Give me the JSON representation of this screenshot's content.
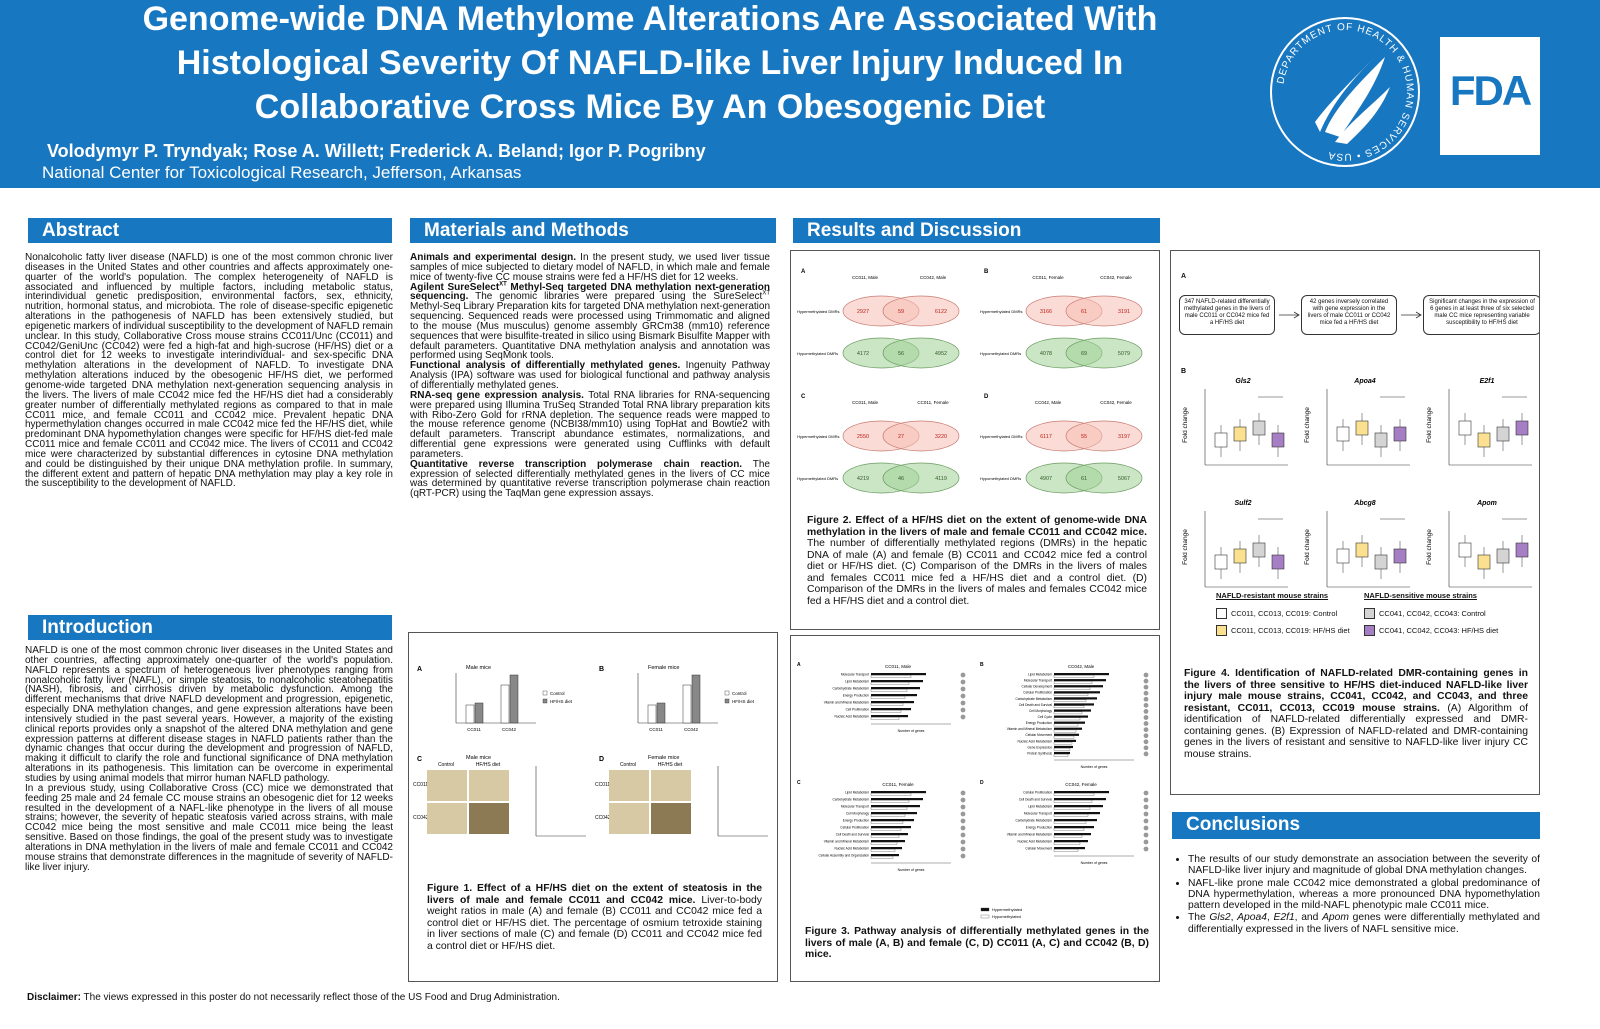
{
  "header": {
    "title_lines": [
      "Genome-wide DNA Methylome Alterations Are Associated With",
      "Histological Severity Of NAFLD-like Liver Injury Induced In",
      "Collaborative Cross Mice By An Obesogenic Diet"
    ],
    "authors": "Volodymyr P. Tryndyak; Rose A. Willett; Frederick A. Beland; Igor P. Pogribny",
    "affiliation": "National Center for Toxicological Research, Jefferson, Arkansas",
    "seal_text": "DEPARTMENT OF HEALTH & HUMAN SERVICES • USA",
    "logo": "FDA"
  },
  "abstract": {
    "heading": "Abstract",
    "text": "Nonalcoholic fatty liver disease (NAFLD) is one of the most common chronic liver diseases in the United States and other countries and affects approximately one-quarter of the world's population. The complex heterogeneity of NAFLD is associated and influenced by multiple factors, including metabolic status, interindividual genetic predisposition, environmental factors, sex, ethnicity, nutrition, hormonal status, and microbiota. The role of disease-specific epigenetic alterations in the pathogenesis of NAFLD has been extensively studied, but epigenetic markers of individual susceptibility to the development of NAFLD remain unclear. In this study, Collaborative Cross mouse strains CC011/Unc (CC011) and CC042/GeniUnc (CC042) were fed a high-fat and high-sucrose (HF/HS) diet or a control diet for 12 weeks to investigate interindividual- and sex-specific DNA methylation alterations in the development of NAFLD. To investigate DNA methylation alterations induced by the obesogenic HF/HS diet, we performed genome-wide targeted DNA methylation next-generation sequencing analysis in the livers. The livers of male CC042 mice fed the HF/HS diet had a considerably greater number of differentially methylated regions as compared to that in male CC011 mice, and female CC011 and CC042 mice. Prevalent hepatic DNA hypermethylation changes occurred in male CC042 mice fed the HF/HS diet, while predominant DNA hypomethylation changes were specific for HF/HS diet-fed male CC011 mice and female CC011 and CC042 mice. The livers of CC011 and CC042 mice were characterized by substantial differences in cytosine DNA methylation and could be distinguished by their unique DNA methylation profile. In summary, the different extent and pattern of hepatic DNA methylation may play a key role in the susceptibility to the development of NAFLD."
  },
  "introduction": {
    "heading": "Introduction",
    "paragraphs": [
      "NAFLD is one of the most common chronic liver diseases in the United States and other countries, affecting approximately one-quarter of the world's population. NAFLD represents a spectrum of heterogeneous liver phenotypes ranging from nonalcoholic fatty liver (NAFL), or simple steatosis, to nonalcoholic steatohepatitis (NASH), fibrosis, and cirrhosis driven by metabolic dysfunction. Among the different mechanisms that drive NAFLD development and progression, epigenetic, especially DNA methylation changes, and gene expression alterations have been intensively studied in the past several years. However, a majority of the existing clinical reports provides only a snapshot of the altered DNA methylation and gene expression patterns at different disease stages in NAFLD patients rather than the dynamic changes that occur during the development and progression of NAFLD, making it difficult to clarify the role and functional significance of DNA methylation alterations in its pathogenesis. This limitation can be overcome in experimental studies by using animal models that mirror human NAFLD pathology.",
      "In a previous study, using Collaborative Cross (CC) mice we demonstrated that feeding 25 male and 24 female CC mouse strains an obesogenic diet for 12 weeks resulted in the development of a NAFL-like phenotype in the livers of all mouse strains; however, the severity of hepatic steatosis varied across strains, with male CC042 mice being the most sensitive and male CC011 mice being the least sensitive. Based on those findings, the goal of the present study was to investigate alterations in DNA methylation in the livers of male and female CC011 and CC042 mouse strains that demonstrate differences in the magnitude of severity of NAFLD-like liver injury."
    ]
  },
  "methods": {
    "heading": "Materials and Methods",
    "paragraphs": [
      [
        {
          "text": "Animals and experimental design.",
          "style": "b"
        },
        " In the present study, we used liver tissue samples of mice subjected to dietary model of NAFLD, in which male and female mice of twenty-five CC mouse strains were fed a HF/HS diet for 12 weeks."
      ],
      [
        {
          "text": "Agilent SureSelect",
          "style": "b"
        },
        {
          "text": "XT",
          "style": "bsup"
        },
        {
          "text": " Methyl-Seq targeted DNA methylation next-generation sequencing.",
          "style": "b"
        },
        " The genomic libraries were prepared using the SureSelect",
        {
          "text": "XT",
          "style": "sup"
        },
        " Methyl-Seq Library Preparation kits for targeted DNA methylation next-generation sequencing. Sequenced reads were processed using Trimmomatic and aligned to the mouse (Mus musculus) genome assembly GRCm38 (mm10) reference sequences that were bisulfite-treated in silico using Bismark Bisulfite Mapper with default parameters. Quantitative DNA methylation analysis and annotation was performed using SeqMonk tools."
      ],
      [
        {
          "text": "Functional analysis of differentially methylated genes.",
          "style": "b"
        },
        " Ingenuity Pathway Analysis (IPA) software was used for biological functional and pathway analysis of differentially methylated genes."
      ],
      [
        {
          "text": "RNA-seq gene expression analysis.",
          "style": "b"
        },
        " Total RNA libraries for RNA-sequencing were prepared using Illumina TruSeq Stranded Total RNA library preparation kits with Ribo-Zero Gold for rRNA depletion. The sequence reads were mapped to the mouse reference genome (NCBI38/mm10) using TopHat and Bowtie2 with default parameters. Transcript abundance estimates, normalizations, and differential gene expressions were generated using Cufflinks with default parameters."
      ],
      [
        {
          "text": "Quantitative reverse transcription polymerase chain reaction.",
          "style": "b"
        },
        " The expression of selected differentially methylated genes in the livers of CC mice was determined by quantitative reverse transcription polymerase chain reaction (qRT-PCR) using the TaqMan gene expression assays."
      ]
    ]
  },
  "results": {
    "heading": "Results and Discussion"
  },
  "figure1": {
    "panels": [
      {
        "label": "A",
        "title": "Male mice"
      },
      {
        "label": "B",
        "title": "Female mice"
      },
      {
        "label": "C",
        "title": "Male mice"
      },
      {
        "label": "D",
        "title": "Female mice"
      }
    ],
    "groups": [
      "Control",
      "HF/HS diet"
    ],
    "strains": [
      "CC011",
      "CC042"
    ],
    "caption": [
      {
        "text": "Figure 1. Effect of a HF/HS diet on the extent of steatosis in the livers of male and female CC011 and CC042 mice.",
        "style": "b"
      },
      " Liver-to-body weight ratios in male (A) and female (B) CC011 and CC042 mice fed a control diet or HF/HS diet. The percentage of osmium tetroxide staining in liver sections of male (C) and female (D) CC011 and CC042 mice fed a control diet or HF/HS diet."
    ]
  },
  "figure2": {
    "row_labels": [
      "Hypermethylated DMRs",
      "Hypomethylated DMRs"
    ],
    "panels": [
      {
        "label": "A",
        "left": "CC011, Male",
        "right": "CC042, Male",
        "rows": [
          [
            2927,
            59,
            6122
          ],
          [
            4172,
            56,
            4952
          ]
        ]
      },
      {
        "label": "B",
        "left": "CC011, Female",
        "right": "CC042, Female",
        "rows": [
          [
            3166,
            61,
            3191
          ],
          [
            4078,
            69,
            5079
          ]
        ]
      },
      {
        "label": "C",
        "left": "CC011, Male",
        "right": "CC011, Female",
        "rows": [
          [
            2550,
            27,
            3220
          ],
          [
            4219,
            46,
            4119
          ]
        ]
      },
      {
        "label": "D",
        "left": "CC042, Male",
        "right": "CC042, Female",
        "rows": [
          [
            6117,
            55,
            3197
          ],
          [
            4907,
            61,
            5067
          ]
        ]
      }
    ],
    "caption": [
      {
        "text": "Figure 2. Effect of a HF/HS diet on the extent of genome-wide DNA methylation in the livers of male and female CC011 and CC042 mice.",
        "style": "b"
      },
      " The number of differentially methylated regions (DMRs) in the hepatic DNA of male (A) and female (B) CC011 and CC042 mice fed a control diet or HF/HS diet. (C) Comparison of the DMRs in the livers of males and females CC011 mice fed a HF/HS diet and a control diet. (D) Comparison of the DMRs in the livers of males and females CC042 mice fed a HF/HS diet and a control diet."
    ]
  },
  "figure3": {
    "axis_label": "Number of genes",
    "legend": [
      "Hypermethylated",
      "Hypomethylated"
    ],
    "panels": [
      {
        "label": "A",
        "title": "CC011, Male",
        "categories": [
          "Molecular Transport",
          "Lipid Metabolism",
          "Carbohydrate Metabolism",
          "Energy Production",
          "Vitamin and Mineral Metabolism",
          "Cell Proliferation",
          "Nucleic Acid Metabolism"
        ]
      },
      {
        "label": "B",
        "title": "CC042, Male",
        "categories": [
          "Lipid Metabolism",
          "Molecular Transport",
          "Cellular Development",
          "Cellular Proliferation",
          "Carbohydrate Metabolism",
          "Cell Death and Survival",
          "Cell Morphology",
          "Cell Cycle",
          "Energy Production",
          "Vitamin and Mineral Metabolism",
          "Cellular Movement",
          "Nucleic Acid Metabolism",
          "Gene Expression",
          "Protein Synthesis"
        ]
      },
      {
        "label": "C",
        "title": "CC011, Female",
        "categories": [
          "Lipid Metabolism",
          "Carbohydrate Metabolism",
          "Molecular Transport",
          "Cell Morphology",
          "Energy Production",
          "Cellular Proliferation",
          "Cell Death and Survival",
          "Vitamin and Mineral Metabolism",
          "Nucleic Acid Metabolism",
          "Cellular Assembly and Organization"
        ]
      },
      {
        "label": "D",
        "title": "CC042, Female",
        "categories": [
          "Cellular Proliferation",
          "Cell Death and Survival",
          "Lipid Metabolism",
          "Molecular Transport",
          "Carbohydrate Metabolism",
          "Energy Production",
          "Vitamin and Mineral Metabolism",
          "Nucleic Acid Metabolism",
          "Cellular Movement"
        ]
      }
    ],
    "caption": [
      {
        "text": "Figure 3. Pathway analysis of differentially methylated genes in the livers of male (A, B) and female (C, D) CC011 (A, C) and CC042 (B, D) mice.",
        "style": "b"
      }
    ]
  },
  "figure4": {
    "panel_a": "A",
    "panel_b": "B",
    "flow": [
      "347 NAFLD-related differentially methylated genes in the livers of male CC011 or CC042 mice fed a HF/HS diet",
      "42 genes inversely correlated with gene expression in the livers of male CC011 or CC042 mice fed a HF/HS diet",
      "Significant changes in the expression of 6 genes in at least three of six selected male CC mice representing variable susceptibility to HF/HS diet"
    ],
    "genes": [
      "Gls2",
      "Apoa4",
      "E2f1",
      "Sulf2",
      "Abcg8",
      "Apom"
    ],
    "y_label": "Fold change",
    "legend_headings": [
      "NAFLD-resistant mouse strains",
      "NAFLD-sensitive mouse strains"
    ],
    "legend": [
      {
        "name": "CC011, CC013, CC019: Control",
        "color": "#ffffff"
      },
      {
        "name": "CC011, CC013, CC019: HF/HS diet",
        "color": "#fbe08f"
      },
      {
        "name": "CC041, CC042, CC043: Control",
        "color": "#d4d4d4"
      },
      {
        "name": "CC041, CC042, CC043: HF/HS diet",
        "color": "#a57ec4"
      }
    ],
    "caption": [
      {
        "text": "Figure 4. Identification of NAFLD-related DMR-containing genes in the livers of three sensitive to HF/HS diet-induced NAFLD-like liver injury male mouse strains, CC041, CC042, and CC043, and three resistant, CC011, CC013, CC019 mouse strains.",
        "style": "b"
      },
      " (A) Algorithm of identification of NAFLD-related differentially expressed and DMR-containing genes. (B) Expression of NAFLD-related and DMR-containing genes in the livers of resistant and sensitive to NAFLD-like liver injury CC mouse strains."
    ]
  },
  "conclusions": {
    "heading": "Conclusions",
    "bullets": [
      [
        "The results of our study demonstrate an association between the severity of NAFLD-like liver injury and magnitude of global DNA methylation changes."
      ],
      [
        "NAFL-like prone male CC042 mice demonstrated a global predominance of DNA hypermethylation, whereas a more pronounced DNA hypomethylation pattern developed in the mild-NAFL phenotypic male CC011 mice."
      ],
      [
        "The ",
        {
          "text": "Gls2",
          "style": "i"
        },
        ", ",
        {
          "text": "Apoa4",
          "style": "i"
        },
        ", ",
        {
          "text": "E2f1",
          "style": "i"
        },
        ", and ",
        {
          "text": "Apom",
          "style": "i"
        },
        " genes were differentially methylated and differentially expressed in the livers of NAFL sensitive mice."
      ]
    ]
  },
  "disclaimer": [
    {
      "text": "Disclaimer:",
      "style": "b"
    },
    " The views expressed in this poster do not necessarily reflect those of the US Food and Drug Administration."
  ]
}
